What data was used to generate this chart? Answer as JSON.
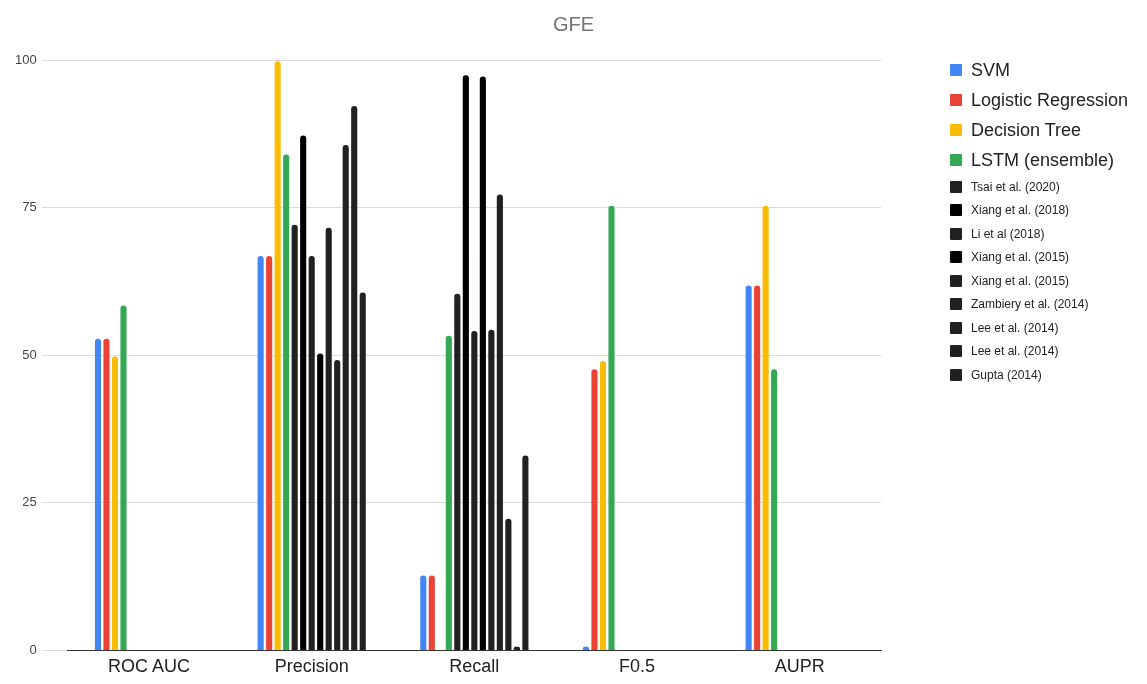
{
  "chart_data": {
    "type": "bar",
    "title": "GFE",
    "categories": [
      "ROC AUC",
      "Precision",
      "Recall",
      "F0.5",
      "AUPR"
    ],
    "series": [
      {
        "name": "SVM",
        "color": "#4285f4",
        "values": [
          52.8,
          66.8,
          12.7,
          0.6,
          61.8
        ]
      },
      {
        "name": "Logistic Regression",
        "color": "#ea4335",
        "values": [
          52.8,
          66.8,
          12.7,
          47.6,
          61.8
        ]
      },
      {
        "name": "Decision Tree",
        "color": "#fbbc04",
        "values": [
          49.8,
          99.8,
          null,
          49.0,
          75.3
        ]
      },
      {
        "name": "LSTM (ensemble)",
        "color": "#34a853",
        "values": [
          58.4,
          84.0,
          53.3,
          75.3,
          47.6
        ]
      },
      {
        "name": "Tsai et al. (2020)",
        "color": "#212121",
        "values": [
          null,
          72.1,
          60.4,
          null,
          null
        ]
      },
      {
        "name": "Xiang et al. (2018)",
        "color": "#000000",
        "values": [
          null,
          87.2,
          97.4,
          null,
          null
        ]
      },
      {
        "name": "Li et al (2018)",
        "color": "#212121",
        "values": [
          null,
          66.8,
          54.1,
          null,
          null
        ]
      },
      {
        "name": "Xiang et al. (2015)",
        "color": "#000000",
        "values": [
          null,
          50.3,
          97.2,
          null,
          null
        ]
      },
      {
        "name": "Xiang et al. (2015)",
        "color": "#212121",
        "values": [
          null,
          71.6,
          54.3,
          null,
          null
        ]
      },
      {
        "name": "Zambiery et al. (2014)",
        "color": "#212121",
        "values": [
          null,
          49.2,
          77.2,
          null,
          null
        ]
      },
      {
        "name": "Lee et al. (2014)",
        "color": "#212121",
        "values": [
          null,
          85.6,
          22.3,
          null,
          null
        ]
      },
      {
        "name": "Lee et al. (2014)",
        "color": "#212121",
        "values": [
          null,
          92.2,
          0.6,
          null,
          null
        ]
      },
      {
        "name": "Gupta (2014)",
        "color": "#212121",
        "values": [
          null,
          60.6,
          33.0,
          null,
          null
        ]
      }
    ],
    "ylim": [
      0,
      100
    ],
    "yticks": [
      0,
      25,
      50,
      75,
      100
    ],
    "grid": "y",
    "legend": "right"
  }
}
